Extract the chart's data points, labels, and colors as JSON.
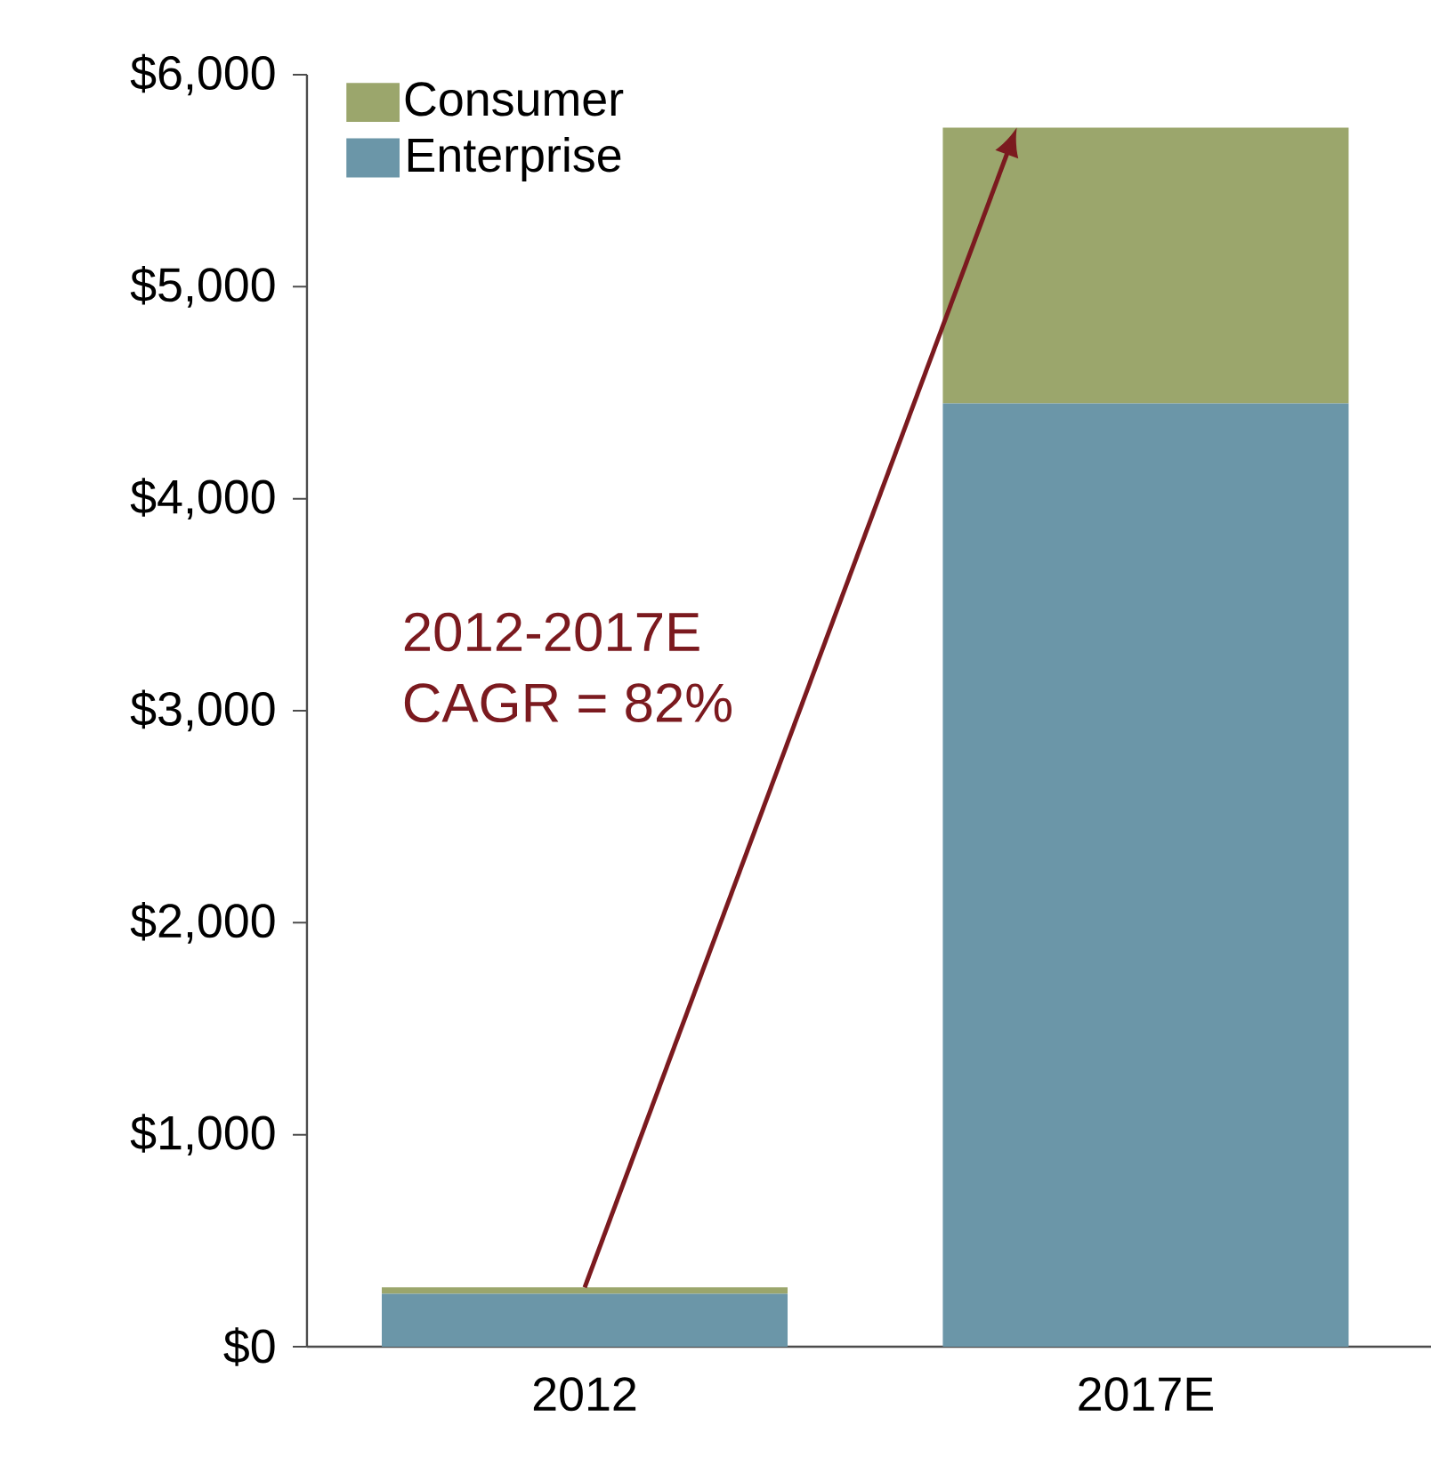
{
  "chart_data": {
    "type": "bar",
    "stacked": true,
    "categories": [
      "2012",
      "2017E"
    ],
    "series": [
      {
        "name": "Enterprise",
        "color": "#6b96a8",
        "values": [
          250,
          4450
        ]
      },
      {
        "name": "Consumer",
        "color": "#9ba66c",
        "values": [
          30,
          1300
        ]
      }
    ],
    "ylim": [
      0,
      6000
    ],
    "yticks": [
      {
        "value": 0,
        "label": "$0"
      },
      {
        "value": 1000,
        "label": "$1,000"
      },
      {
        "value": 2000,
        "label": "$2,000"
      },
      {
        "value": 3000,
        "label": "$3,000"
      },
      {
        "value": 4000,
        "label": "$4,000"
      },
      {
        "value": 5000,
        "label": "$5,000"
      },
      {
        "value": 6000,
        "label": "$6,000"
      }
    ],
    "annotations": [
      "2012-2017E",
      "CAGR = 82%"
    ],
    "legend": "top left",
    "grid": false
  }
}
